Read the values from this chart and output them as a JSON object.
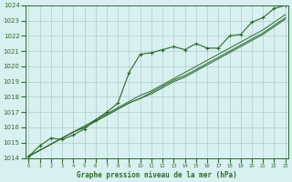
{
  "x": [
    0,
    1,
    2,
    3,
    4,
    5,
    6,
    7,
    8,
    9,
    10,
    11,
    12,
    13,
    14,
    15,
    16,
    17,
    18,
    19,
    20,
    21,
    22,
    23
  ],
  "series_main": [
    1014.1,
    1014.8,
    1015.3,
    1015.2,
    1015.5,
    1015.9,
    1016.5,
    1017.0,
    1017.6,
    1019.6,
    1020.8,
    1020.9,
    1021.1,
    1021.3,
    1021.1,
    1021.5,
    1021.2,
    1021.2,
    1022.0,
    1022.1,
    1022.9,
    1023.2,
    1023.8,
    1024.0
  ],
  "series_linear1": [
    1014.1,
    1014.5,
    1014.9,
    1015.3,
    1015.7,
    1016.1,
    1016.5,
    1016.9,
    1017.3,
    1017.7,
    1018.1,
    1018.4,
    1018.8,
    1019.2,
    1019.6,
    1020.0,
    1020.4,
    1020.8,
    1021.2,
    1021.6,
    1022.0,
    1022.4,
    1022.9,
    1023.4
  ],
  "series_linear2": [
    1014.1,
    1014.5,
    1014.9,
    1015.3,
    1015.7,
    1016.0,
    1016.4,
    1016.8,
    1017.2,
    1017.6,
    1017.9,
    1018.3,
    1018.7,
    1019.1,
    1019.4,
    1019.8,
    1020.2,
    1020.6,
    1021.0,
    1021.4,
    1021.8,
    1022.2,
    1022.7,
    1023.2
  ],
  "series_linear3": [
    1014.1,
    1014.5,
    1014.9,
    1015.3,
    1015.7,
    1016.0,
    1016.4,
    1016.8,
    1017.2,
    1017.6,
    1017.9,
    1018.2,
    1018.6,
    1019.0,
    1019.3,
    1019.7,
    1020.1,
    1020.5,
    1020.9,
    1021.3,
    1021.7,
    1022.1,
    1022.6,
    1023.1
  ],
  "line_color": "#2d6a2d",
  "bg_color": "#d8f0f0",
  "grid_color": "#b0cccc",
  "xlabel": "Graphe pression niveau de la mer (hPa)",
  "ylim_min": 1014,
  "ylim_max": 1024,
  "xlim_min": 0,
  "xlim_max": 23
}
